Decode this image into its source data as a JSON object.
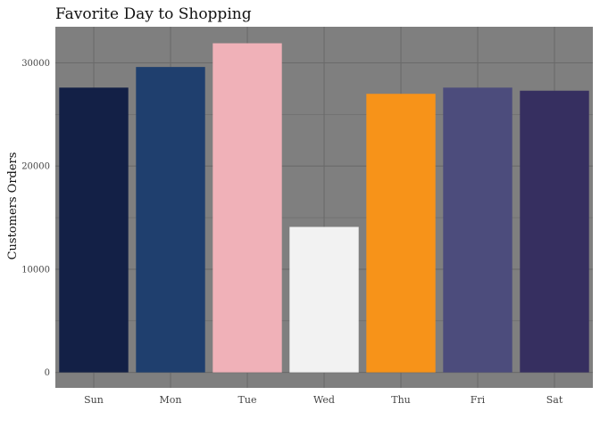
{
  "chart_data": {
    "type": "bar",
    "title": "Favorite Day to Shopping",
    "xlabel": "",
    "ylabel": "Customers Orders",
    "categories": [
      "Sun",
      "Mon",
      "Tue",
      "Wed",
      "Thu",
      "Fri",
      "Sat"
    ],
    "values": [
      27600,
      29600,
      31900,
      14100,
      27000,
      27600,
      27300
    ],
    "colors": [
      "#132046",
      "#1f3f6e",
      "#f0b1b8",
      "#f2f2f2",
      "#f79319",
      "#4c4c7c",
      "#362f60"
    ],
    "ylim": [
      -1500,
      33500
    ],
    "yticks": [
      0,
      10000,
      20000,
      30000
    ],
    "ytick_labels": [
      "0",
      "10000",
      "20000",
      "30000"
    ],
    "grid": true,
    "legend": "none",
    "panel_color": "#7f7f7f",
    "grid_color": "#6a6a6a"
  }
}
